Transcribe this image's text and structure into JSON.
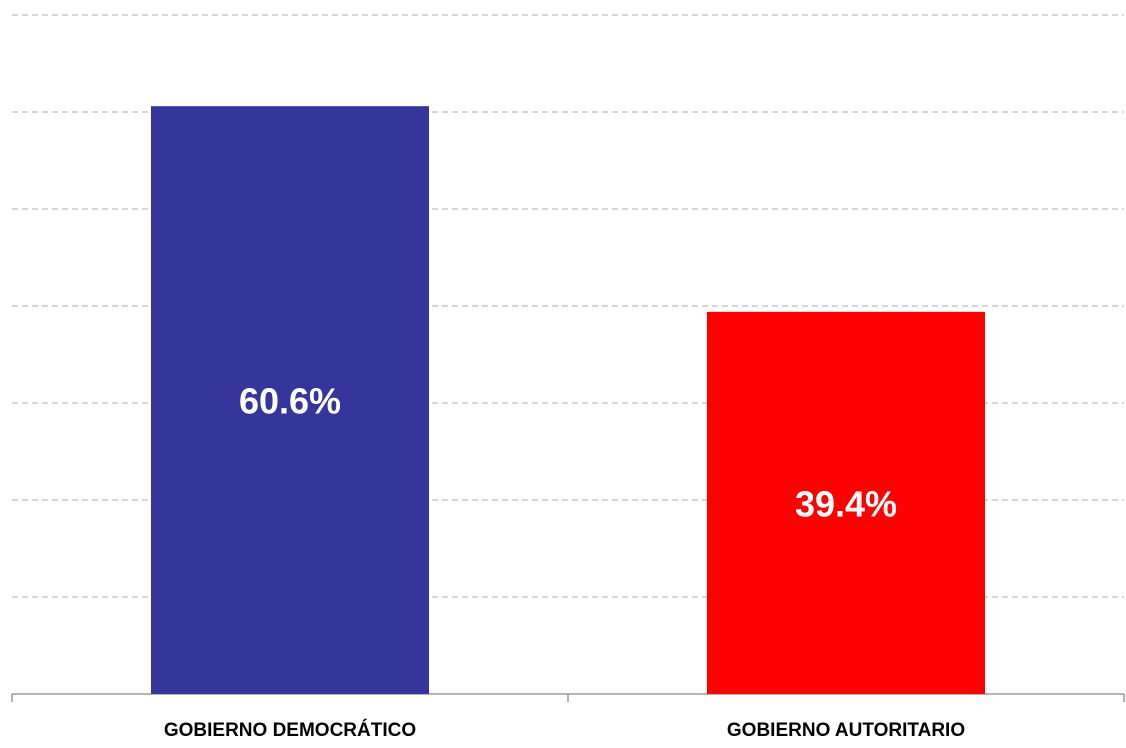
{
  "chart_data": {
    "type": "bar",
    "categories": [
      "GOBIERNO DEMOCRÁTICO",
      "GOBIERNO AUTORITARIO"
    ],
    "values": [
      60.6,
      39.4
    ],
    "value_labels": [
      "60.6%",
      "39.4%"
    ],
    "colors": [
      "#35359b",
      "#ff0000"
    ],
    "ylim": [
      0,
      70
    ],
    "yticks": [
      0,
      10,
      20,
      30,
      40,
      50,
      60,
      70
    ],
    "grid": true,
    "show_tick_labels": false
  }
}
